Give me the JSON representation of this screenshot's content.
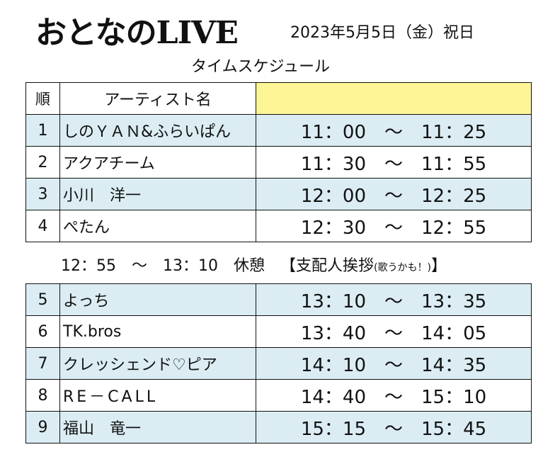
{
  "header": {
    "title": "おとなのLIVE",
    "date": "2023年5月5日（金）祝日",
    "subtitle": "タイムスケジュール"
  },
  "table": {
    "col_no": "順",
    "col_artist": "アーティスト名",
    "col_time": "",
    "header_highlight_color": "#fdf596",
    "row_shade_color": "#dbedf3"
  },
  "rows_top": [
    {
      "no": "1",
      "artist": "しのＹＡＮ&ふらいぱん",
      "start": "11：00",
      "sep": "～",
      "end": "11：25"
    },
    {
      "no": "2",
      "artist": "アクアチーム",
      "start": "11：30",
      "sep": "～",
      "end": "11：55"
    },
    {
      "no": "3",
      "artist": "小川　洋一",
      "start": "12：00",
      "sep": "～",
      "end": "12：25"
    },
    {
      "no": "4",
      "artist": "ぺたん",
      "start": "12：30",
      "sep": "～",
      "end": "12：55"
    }
  ],
  "break": {
    "start": "12：55",
    "sep": "～",
    "end": "13：10",
    "label": "休憩",
    "note_main": "【支配人挨拶",
    "note_small": "(歌うかも！)",
    "note_close": "】"
  },
  "rows_bottom": [
    {
      "no": "5",
      "artist": "よっち",
      "start": "13：10",
      "sep": "～",
      "end": "13：35"
    },
    {
      "no": "6",
      "artist": "TK.bros",
      "start": "13：40",
      "sep": "～",
      "end": "14：05"
    },
    {
      "no": "7",
      "artist": "クレッシェンド♡ピア",
      "start": "14：10",
      "sep": "～",
      "end": "14：35"
    },
    {
      "no": "8",
      "artist": "RE－CALL",
      "start": "14：40",
      "sep": "～",
      "end": "15：10"
    },
    {
      "no": "9",
      "artist": "福山　竜一",
      "start": "15：15",
      "sep": "～",
      "end": "15：45"
    }
  ]
}
